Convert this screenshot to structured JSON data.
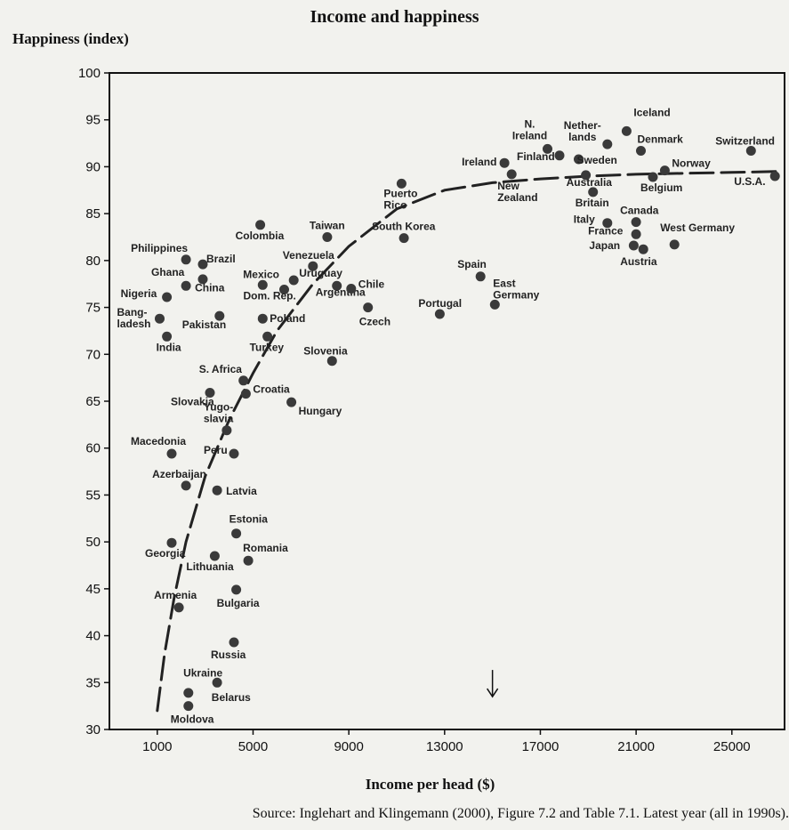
{
  "title": "Income and happiness",
  "source": "Source: Inglehart and Klingemann (2000), Figure 7.2 and Table 7.1. Latest year (all in 1990s).",
  "chart_data": {
    "type": "scatter",
    "title": "Income and happiness",
    "xlabel": "Income per head ($)",
    "ylabel": "Happiness (index)",
    "xlim": [
      -1000,
      27200
    ],
    "ylim": [
      30,
      100
    ],
    "x_ticks": [
      1000,
      5000,
      9000,
      13000,
      17000,
      21000,
      25000
    ],
    "y_ticks": [
      30,
      35,
      40,
      45,
      50,
      55,
      60,
      65,
      70,
      75,
      80,
      85,
      90,
      95,
      100
    ],
    "grid": false,
    "points": [
      {
        "label": "Iceland",
        "x": 20600,
        "y": 93.8
      },
      {
        "label": "N. Ireland",
        "x": 17300,
        "y": 91.9
      },
      {
        "label": "Nether- lands",
        "x": 19800,
        "y": 92.4
      },
      {
        "label": "Denmark",
        "x": 21200,
        "y": 91.7
      },
      {
        "label": "Switzerland",
        "x": 25800,
        "y": 91.7
      },
      {
        "label": "Ireland",
        "x": 15500,
        "y": 90.4
      },
      {
        "label": "Finland",
        "x": 17800,
        "y": 91.2
      },
      {
        "label": "Sweden",
        "x": 18600,
        "y": 90.8
      },
      {
        "label": "Norway",
        "x": 22200,
        "y": 89.6
      },
      {
        "label": "New Zealand",
        "x": 15800,
        "y": 89.2
      },
      {
        "label": "Australia",
        "x": 18900,
        "y": 89.1
      },
      {
        "label": "U.S.A.",
        "x": 26800,
        "y": 89.0
      },
      {
        "label": "Belgium",
        "x": 21700,
        "y": 88.9
      },
      {
        "label": "Puerto Rico",
        "x": 11200,
        "y": 88.2
      },
      {
        "label": "Britain",
        "x": 19200,
        "y": 87.3
      },
      {
        "label": "Canada",
        "x": 21000,
        "y": 84.1
      },
      {
        "label": "Italy",
        "x": 19800,
        "y": 84.0
      },
      {
        "label": "Colombia",
        "x": 5300,
        "y": 83.8
      },
      {
        "label": "France",
        "x": 21000,
        "y": 82.8
      },
      {
        "label": "Taiwan",
        "x": 8100,
        "y": 82.5
      },
      {
        "label": "South Korea",
        "x": 11300,
        "y": 82.4
      },
      {
        "label": "West Germany",
        "x": 22600,
        "y": 81.7
      },
      {
        "label": "Japan",
        "x": 20900,
        "y": 81.6
      },
      {
        "label": "Austria",
        "x": 21300,
        "y": 81.2
      },
      {
        "label": "Philippines",
        "x": 2200,
        "y": 80.1
      },
      {
        "label": "Brazil",
        "x": 2900,
        "y": 79.6
      },
      {
        "label": "Venezuela",
        "x": 7500,
        "y": 79.4
      },
      {
        "label": "Spain",
        "x": 14500,
        "y": 78.3
      },
      {
        "label": "Ghana",
        "x": 2900,
        "y": 78.0
      },
      {
        "label": "Uruguay",
        "x": 6700,
        "y": 77.9
      },
      {
        "label": "Mexico",
        "x": 5400,
        "y": 77.4
      },
      {
        "label": "China",
        "x": 2200,
        "y": 77.3
      },
      {
        "label": "Argentina",
        "x": 8500,
        "y": 77.3
      },
      {
        "label": "Chile",
        "x": 9100,
        "y": 77.0
      },
      {
        "label": "Dom. Rep.",
        "x": 6300,
        "y": 76.9
      },
      {
        "label": "Nigeria",
        "x": 1400,
        "y": 76.1
      },
      {
        "label": "East Germany",
        "x": 15100,
        "y": 75.3
      },
      {
        "label": "Czech",
        "x": 9800,
        "y": 75.0
      },
      {
        "label": "Portugal",
        "x": 12800,
        "y": 74.3
      },
      {
        "label": "Pakistan",
        "x": 3600,
        "y": 74.1
      },
      {
        "label": "Bang- ladesh",
        "x": 1100,
        "y": 73.8
      },
      {
        "label": "Poland",
        "x": 5400,
        "y": 73.8
      },
      {
        "label": "India",
        "x": 1400,
        "y": 71.9
      },
      {
        "label": "Turkey",
        "x": 5600,
        "y": 71.9
      },
      {
        "label": "Slovenia",
        "x": 8300,
        "y": 69.3
      },
      {
        "label": "S. Africa",
        "x": 4600,
        "y": 67.2
      },
      {
        "label": "Slovakia",
        "x": 3200,
        "y": 65.9
      },
      {
        "label": "Croatia",
        "x": 4700,
        "y": 65.8
      },
      {
        "label": "Hungary",
        "x": 6600,
        "y": 64.9
      },
      {
        "label": "Yugo- slavia",
        "x": 3900,
        "y": 61.9
      },
      {
        "label": "Macedonia",
        "x": 1600,
        "y": 59.4
      },
      {
        "label": "Peru",
        "x": 4200,
        "y": 59.4
      },
      {
        "label": "Azerbaijan",
        "x": 2200,
        "y": 56.0
      },
      {
        "label": "Latvia",
        "x": 3500,
        "y": 55.5
      },
      {
        "label": "Estonia",
        "x": 4300,
        "y": 50.9
      },
      {
        "label": "Georgia",
        "x": 1600,
        "y": 49.9
      },
      {
        "label": "Lithuania",
        "x": 3400,
        "y": 48.5
      },
      {
        "label": "Romania",
        "x": 4800,
        "y": 48.0
      },
      {
        "label": "Armenia",
        "x": 1900,
        "y": 43.0
      },
      {
        "label": "Bulgaria",
        "x": 4300,
        "y": 44.9
      },
      {
        "label": "Russia",
        "x": 4200,
        "y": 39.3
      },
      {
        "label": "Ukraine",
        "x": 3500,
        "y": 35.0
      },
      {
        "label": "Belarus",
        "x": 2300,
        "y": 33.9
      },
      {
        "label": "Moldova",
        "x": 2300,
        "y": 32.5
      }
    ],
    "trend_curve": [
      [
        1000,
        32
      ],
      [
        1300,
        38
      ],
      [
        1700,
        44
      ],
      [
        2200,
        50
      ],
      [
        3000,
        57
      ],
      [
        4000,
        63
      ],
      [
        5000,
        68
      ],
      [
        6000,
        72.5
      ],
      [
        7500,
        77.5
      ],
      [
        9000,
        81.5
      ],
      [
        11000,
        85.5
      ],
      [
        13000,
        87.5
      ],
      [
        15000,
        88.3
      ],
      [
        17000,
        88.7
      ],
      [
        19000,
        89.0
      ],
      [
        21000,
        89.2
      ],
      [
        23000,
        89.3
      ],
      [
        25000,
        89.4
      ],
      [
        27000,
        89.5
      ]
    ],
    "annotations": [
      {
        "type": "arrow-down",
        "x": 15000,
        "y": 33.5
      }
    ]
  }
}
